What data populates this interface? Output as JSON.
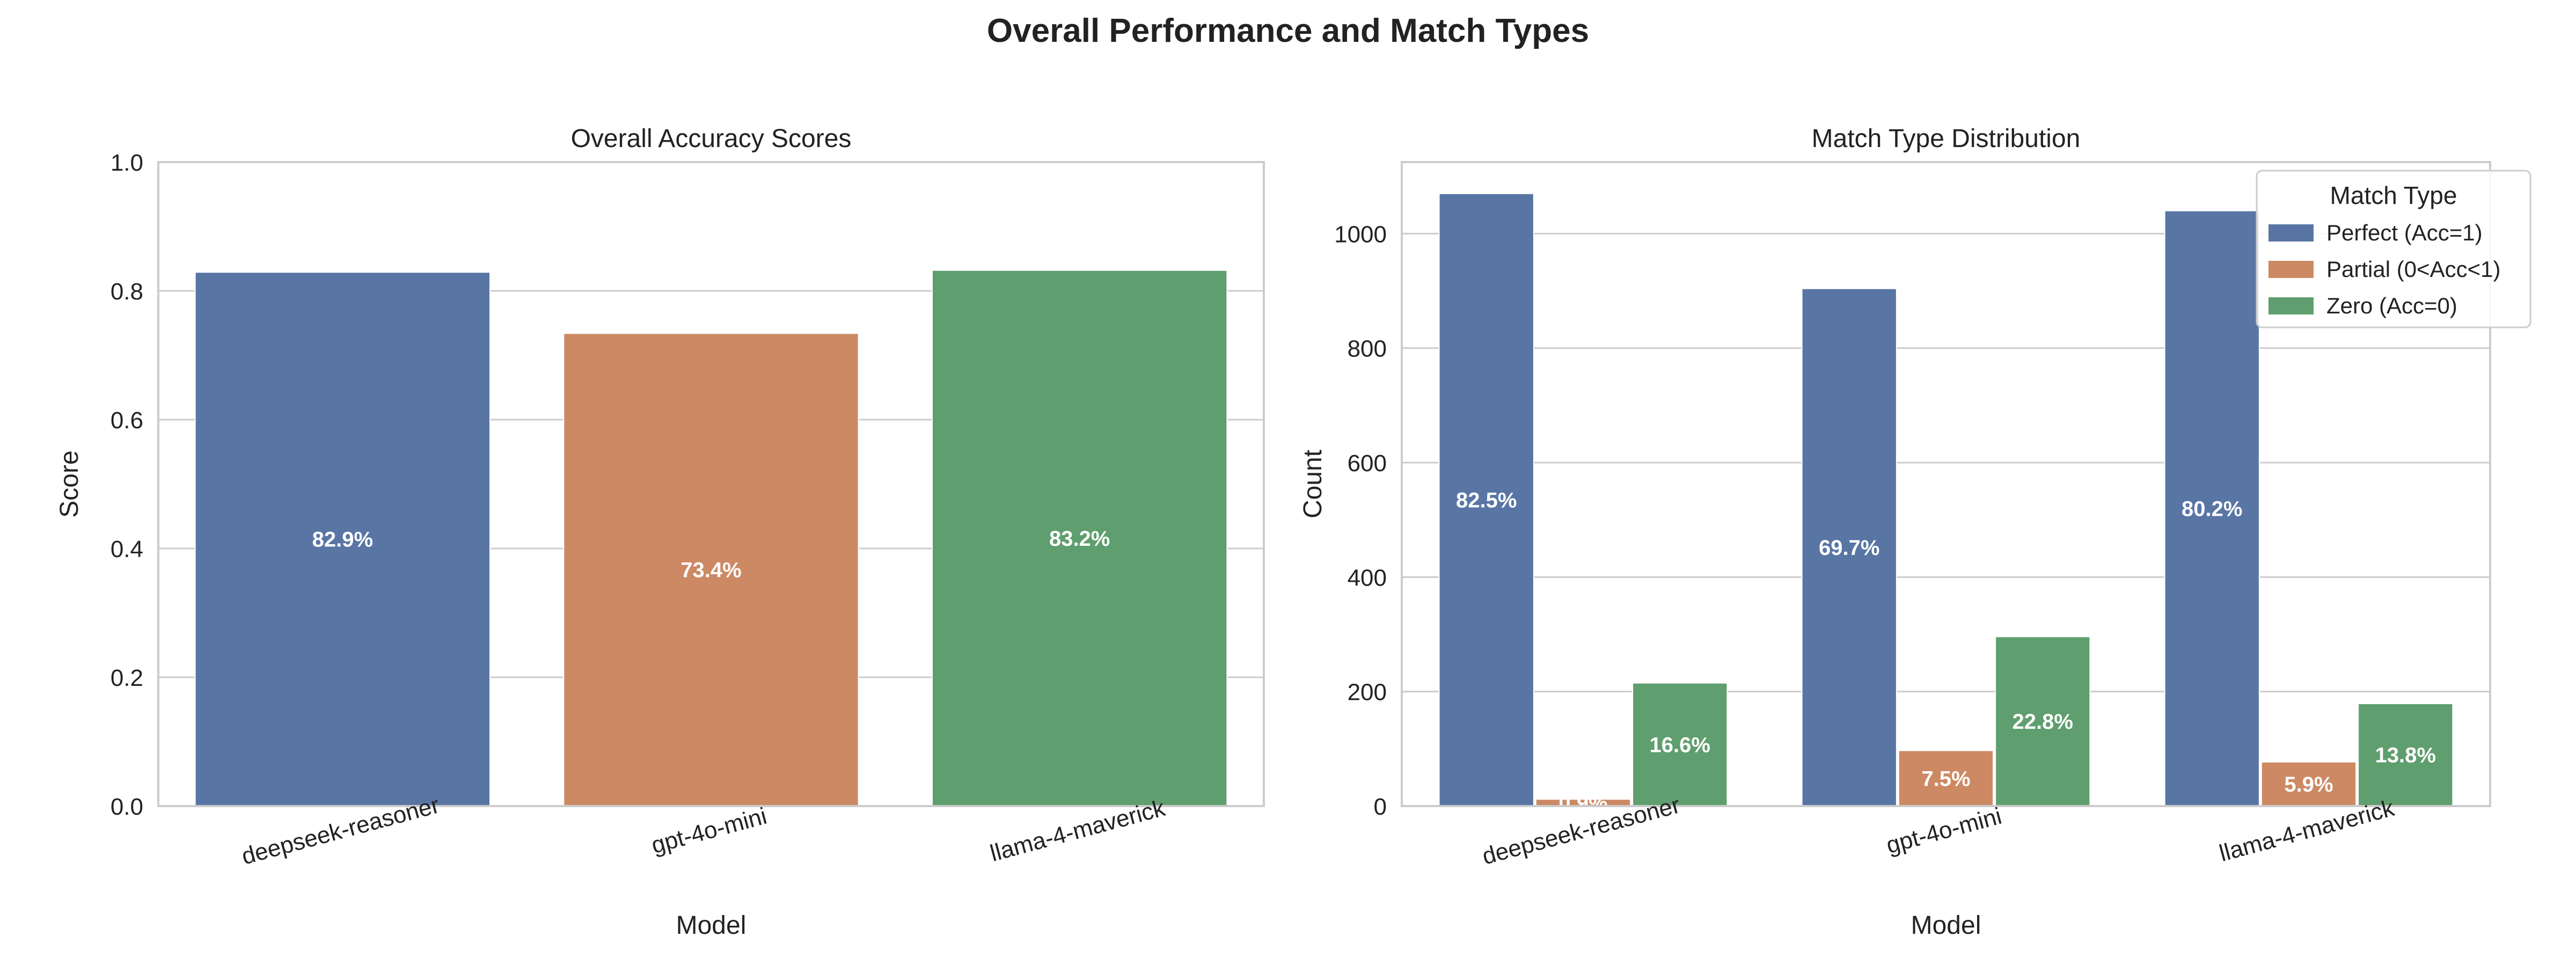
{
  "figure": {
    "title": "Overall Performance and Match Types"
  },
  "colors": {
    "blue": "#5875a4",
    "orange": "#cc8963",
    "green": "#5f9e6e",
    "grid": "#cccccc",
    "frame": "#cccccc",
    "text": "#222222",
    "label": "#ffffff"
  },
  "chart_data": [
    {
      "type": "bar",
      "title": "Overall Accuracy Scores",
      "xlabel": "Model",
      "ylabel": "Score",
      "categories": [
        "deepseek-reasoner",
        "gpt-4o-mini",
        "llama-4-maverick"
      ],
      "values": [
        0.829,
        0.734,
        0.832
      ],
      "bar_labels": [
        "82.9%",
        "73.4%",
        "83.2%"
      ],
      "ylim": [
        0,
        1.0
      ],
      "yticks": [
        0.0,
        0.2,
        0.4,
        0.6,
        0.8,
        1.0
      ],
      "ytick_labels": [
        "0.0",
        "0.2",
        "0.4",
        "0.6",
        "0.8",
        "1.0"
      ],
      "grid": true,
      "legend": null
    },
    {
      "type": "bar",
      "title": "Match Type Distribution",
      "xlabel": "Model",
      "ylabel": "Count",
      "categories": [
        "deepseek-reasoner",
        "gpt-4o-mini",
        "llama-4-maverick"
      ],
      "series": [
        {
          "name": "Perfect (Acc=1)",
          "values": [
            1070,
            904,
            1040
          ],
          "labels": [
            "82.5%",
            "69.7%",
            "80.2%"
          ]
        },
        {
          "name": "Partial (0<Acc<1)",
          "values": [
            12,
            97,
            77
          ],
          "labels": [
            "0.9%",
            "7.5%",
            "5.9%"
          ]
        },
        {
          "name": "Zero (Acc=0)",
          "values": [
            215,
            296,
            179
          ],
          "labels": [
            "16.6%",
            "22.8%",
            "13.8%"
          ]
        }
      ],
      "ylim": [
        0,
        1125
      ],
      "yticks": [
        0,
        200,
        400,
        600,
        800,
        1000
      ],
      "ytick_labels": [
        "0",
        "200",
        "400",
        "600",
        "800",
        "1000"
      ],
      "grid": true,
      "legend": {
        "title": "Match Type",
        "placement": "top-right"
      }
    }
  ]
}
